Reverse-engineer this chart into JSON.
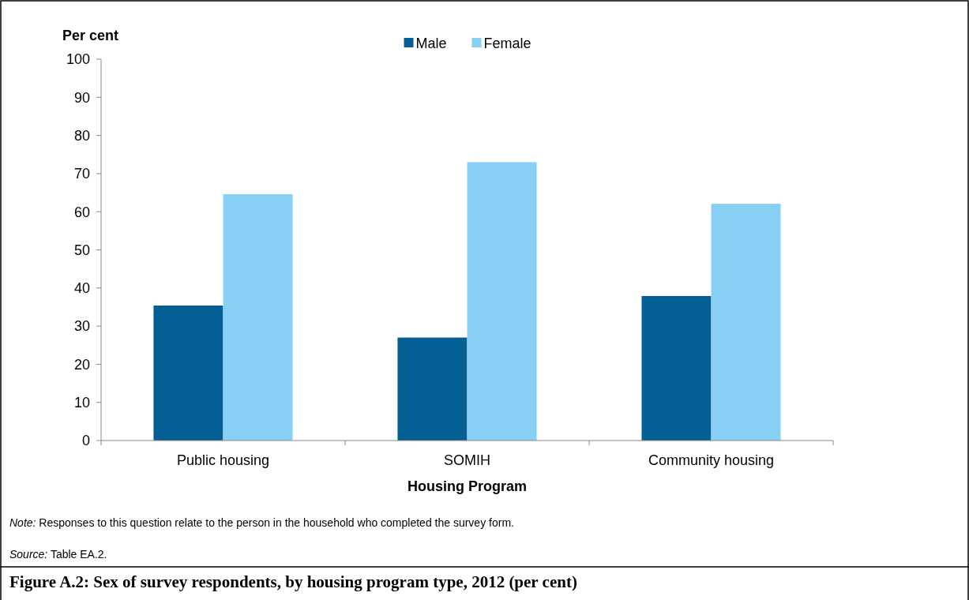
{
  "chart_data": {
    "type": "bar",
    "title": "Figure A.2: Sex of survey respondents, by housing program type, 2012 (per cent)",
    "xlabel": "Housing Program",
    "ylabel": "Per cent",
    "categories": [
      "Public housing",
      "SOMIH",
      "Community housing"
    ],
    "series": [
      {
        "name": "Male",
        "color": "#045f94",
        "values": [
          35.4,
          27,
          37.9
        ]
      },
      {
        "name": "Female",
        "color": "#87d0f3",
        "values": [
          64.6,
          73,
          62.1
        ]
      }
    ],
    "ylim": [
      0,
      100
    ],
    "yticks": [
      0,
      10,
      20,
      30,
      40,
      50,
      60,
      70,
      80,
      90,
      100
    ],
    "grid": false,
    "legend": "top",
    "annotations": [
      "Note: Responses to this question relate to the person in the household who completed the survey form.",
      "Source: Table EA.2."
    ]
  }
}
